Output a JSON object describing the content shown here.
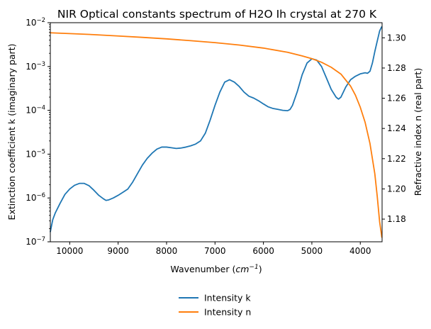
{
  "chart_data": {
    "type": "line",
    "title": "NIR Optical constants spectrum of H2O Ih crystal at 270 K",
    "xlabel_base": "Wavenumber (",
    "xlabel_unit": "cm",
    "xlabel_exp": "−1",
    "xlabel_close": ")",
    "ylabel_left": "Extinction coefficient k (imaginary part)",
    "ylabel_right": "Refractive index n (real part)",
    "x_reversed": true,
    "xlim": [
      10400,
      3550
    ],
    "x_ticks": [
      10000,
      9000,
      8000,
      7000,
      6000,
      5000,
      4000
    ],
    "y_left_scale": "log",
    "y_left_lim": [
      1e-07,
      0.01
    ],
    "y_left_ticks": [
      {
        "base": "10",
        "exp": "−7",
        "value": 1e-07
      },
      {
        "base": "10",
        "exp": "−6",
        "value": 1e-06
      },
      {
        "base": "10",
        "exp": "−5",
        "value": 1e-05
      },
      {
        "base": "10",
        "exp": "−4",
        "value": 0.0001
      },
      {
        "base": "10",
        "exp": "−3",
        "value": 0.001
      },
      {
        "base": "10",
        "exp": "−2",
        "value": 0.01
      }
    ],
    "y_right_lim": [
      1.165,
      1.31
    ],
    "y_right_ticks": [
      "1.18",
      "1.20",
      "1.22",
      "1.24",
      "1.26",
      "1.28",
      "1.30"
    ],
    "grid": false,
    "legend_position": "below",
    "series": [
      {
        "name": "Intensity k",
        "axis": "left",
        "color": "#1f77b4",
        "points": [
          [
            10400,
            1.7e-07
          ],
          [
            10350,
            3.2e-07
          ],
          [
            10300,
            4.5e-07
          ],
          [
            10200,
            7.5e-07
          ],
          [
            10100,
            1.2e-06
          ],
          [
            10000,
            1.6e-06
          ],
          [
            9900,
            1.95e-06
          ],
          [
            9800,
            2.15e-06
          ],
          [
            9700,
            2.15e-06
          ],
          [
            9600,
            1.9e-06
          ],
          [
            9500,
            1.5e-06
          ],
          [
            9400,
            1.15e-06
          ],
          [
            9300,
            9.5e-07
          ],
          [
            9250,
            8.8e-07
          ],
          [
            9200,
            9e-07
          ],
          [
            9100,
            1e-06
          ],
          [
            9000,
            1.15e-06
          ],
          [
            8900,
            1.35e-06
          ],
          [
            8800,
            1.6e-06
          ],
          [
            8700,
            2.3e-06
          ],
          [
            8600,
            3.6e-06
          ],
          [
            8500,
            5.6e-06
          ],
          [
            8400,
            8e-06
          ],
          [
            8300,
            1.05e-05
          ],
          [
            8200,
            1.3e-05
          ],
          [
            8100,
            1.45e-05
          ],
          [
            8000,
            1.45e-05
          ],
          [
            7900,
            1.4e-05
          ],
          [
            7800,
            1.35e-05
          ],
          [
            7700,
            1.38e-05
          ],
          [
            7600,
            1.45e-05
          ],
          [
            7500,
            1.55e-05
          ],
          [
            7400,
            1.7e-05
          ],
          [
            7300,
            2e-05
          ],
          [
            7200,
            3e-05
          ],
          [
            7100,
            6e-05
          ],
          [
            7000,
            0.00013
          ],
          [
            6900,
            0.00026
          ],
          [
            6800,
            0.00044
          ],
          [
            6700,
            0.0005
          ],
          [
            6600,
            0.00044
          ],
          [
            6500,
            0.00035
          ],
          [
            6400,
            0.00026
          ],
          [
            6300,
            0.00021
          ],
          [
            6200,
            0.00019
          ],
          [
            6100,
            0.000165
          ],
          [
            6000,
            0.00014
          ],
          [
            5900,
            0.00012
          ],
          [
            5800,
            0.00011
          ],
          [
            5700,
            0.000105
          ],
          [
            5600,
            0.0001
          ],
          [
            5500,
            9.8e-05
          ],
          [
            5450,
            0.000105
          ],
          [
            5400,
            0.00013
          ],
          [
            5300,
            0.00027
          ],
          [
            5200,
            0.00065
          ],
          [
            5100,
            0.0012
          ],
          [
            5000,
            0.0015
          ],
          [
            4900,
            0.0014
          ],
          [
            4800,
            0.001
          ],
          [
            4700,
            0.00055
          ],
          [
            4600,
            0.0003
          ],
          [
            4500,
            0.0002
          ],
          [
            4450,
            0.00018
          ],
          [
            4400,
            0.0002
          ],
          [
            4300,
            0.00034
          ],
          [
            4200,
            0.0005
          ],
          [
            4100,
            0.0006
          ],
          [
            4000,
            0.00068
          ],
          [
            3900,
            0.00072
          ],
          [
            3850,
            0.0007
          ],
          [
            3800,
            0.00078
          ],
          [
            3750,
            0.0012
          ],
          [
            3700,
            0.0022
          ],
          [
            3650,
            0.0038
          ],
          [
            3600,
            0.0065
          ],
          [
            3560,
            0.008
          ]
        ]
      },
      {
        "name": "Intensity n",
        "axis": "right",
        "color": "#ff7f0e",
        "points": [
          [
            10400,
            1.3033
          ],
          [
            10000,
            1.3028
          ],
          [
            9500,
            1.3021
          ],
          [
            9000,
            1.3012
          ],
          [
            8500,
            1.3003
          ],
          [
            8000,
            1.2993
          ],
          [
            7500,
            1.2981
          ],
          [
            7000,
            1.2968
          ],
          [
            6500,
            1.2952
          ],
          [
            6000,
            1.2932
          ],
          [
            5500,
            1.2904
          ],
          [
            5200,
            1.288
          ],
          [
            5000,
            1.2862
          ],
          [
            4800,
            1.2838
          ],
          [
            4600,
            1.2805
          ],
          [
            4400,
            1.276
          ],
          [
            4200,
            1.268
          ],
          [
            4100,
            1.262
          ],
          [
            4000,
            1.254
          ],
          [
            3900,
            1.244
          ],
          [
            3800,
            1.23
          ],
          [
            3700,
            1.21
          ],
          [
            3650,
            1.195
          ],
          [
            3600,
            1.178
          ],
          [
            3555,
            1.168
          ]
        ]
      }
    ]
  }
}
